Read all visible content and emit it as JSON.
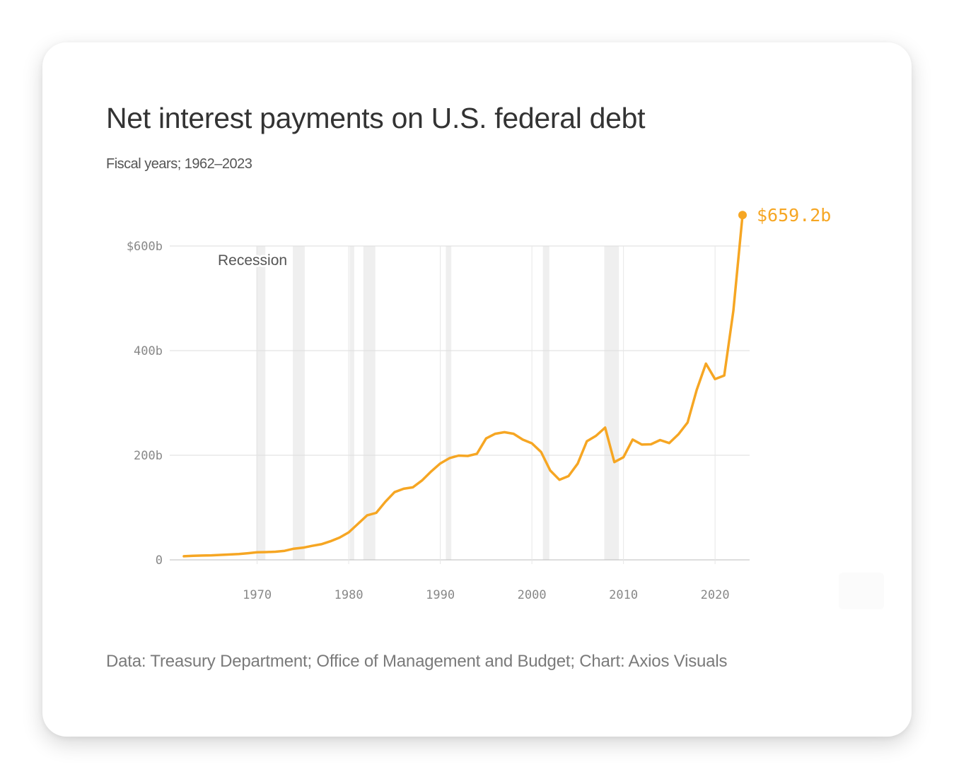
{
  "title": "Net interest payments on U.S. federal debt",
  "subtitle": "Fiscal years; 1962–2023",
  "source": "Data: Treasury Department; Office of Management and Budget; Chart: Axios Visuals",
  "colors": {
    "line": "#F6A623",
    "recession": "#efefef",
    "grid": "#dddddd"
  },
  "chart_data": {
    "type": "line",
    "title": "Net interest payments on U.S. federal debt",
    "subtitle": "Fiscal years; 1962–2023",
    "xlim": [
      1962,
      2023
    ],
    "ylim": [
      0,
      600
    ],
    "grid": true,
    "x_ticks": [
      1970,
      1980,
      1990,
      2000,
      2010,
      2020
    ],
    "x_tick_labels": [
      "1970",
      "1980",
      "1990",
      "2000",
      "2010",
      "2020"
    ],
    "y_ticks": [
      0,
      200,
      400,
      600
    ],
    "y_tick_labels": [
      "0",
      "200b",
      "400b",
      "$600b"
    ],
    "recession_label": "Recession",
    "recessions": [
      [
        1969.9,
        1970.9
      ],
      [
        1973.9,
        1975.2
      ],
      [
        1980.1,
        1980.6
      ],
      [
        1981.6,
        1982.9
      ],
      [
        1990.6,
        1991.2
      ],
      [
        2001.2,
        2001.9
      ],
      [
        2007.9,
        2009.5
      ]
    ],
    "end_label": "$659.2b",
    "series": [
      {
        "x": [
          1962,
          1963,
          1964,
          1965,
          1966,
          1967,
          1968,
          1969,
          1970,
          1971,
          1972,
          1973,
          1974,
          1975,
          1976,
          1977,
          1978,
          1979,
          1980,
          1981,
          1982,
          1983,
          1984,
          1985,
          1986,
          1987,
          1988,
          1989,
          1990,
          1991,
          1992,
          1993,
          1994,
          1995,
          1996,
          1997,
          1998,
          1999,
          2000,
          2001,
          2002,
          2003,
          2004,
          2005,
          2006,
          2007,
          2008,
          2009,
          2010,
          2011,
          2012,
          2013,
          2014,
          2015,
          2016,
          2017,
          2018,
          2019,
          2020,
          2021,
          2022,
          2023
        ],
        "values": [
          6.9,
          7.7,
          8.2,
          8.6,
          9.4,
          10.3,
          11.1,
          12.7,
          14.4,
          14.8,
          15.5,
          17.3,
          21.4,
          23.2,
          26.7,
          29.9,
          35.5,
          42.6,
          52.5,
          68.8,
          85.0,
          89.8,
          111.1,
          129.5,
          136.0,
          138.6,
          151.8,
          169.0,
          184.3,
          194.4,
          199.3,
          198.7,
          202.9,
          232.1,
          241.1,
          244.0,
          241.1,
          229.8,
          222.9,
          206.2,
          170.9,
          153.1,
          160.2,
          184.0,
          226.6,
          237.1,
          252.8,
          186.9,
          196.2,
          230.0,
          220.4,
          220.9,
          229.0,
          223.2,
          240.0,
          262.6,
          325.0,
          375.2,
          345.5,
          352.3,
          475.9,
          659.2
        ]
      }
    ]
  }
}
